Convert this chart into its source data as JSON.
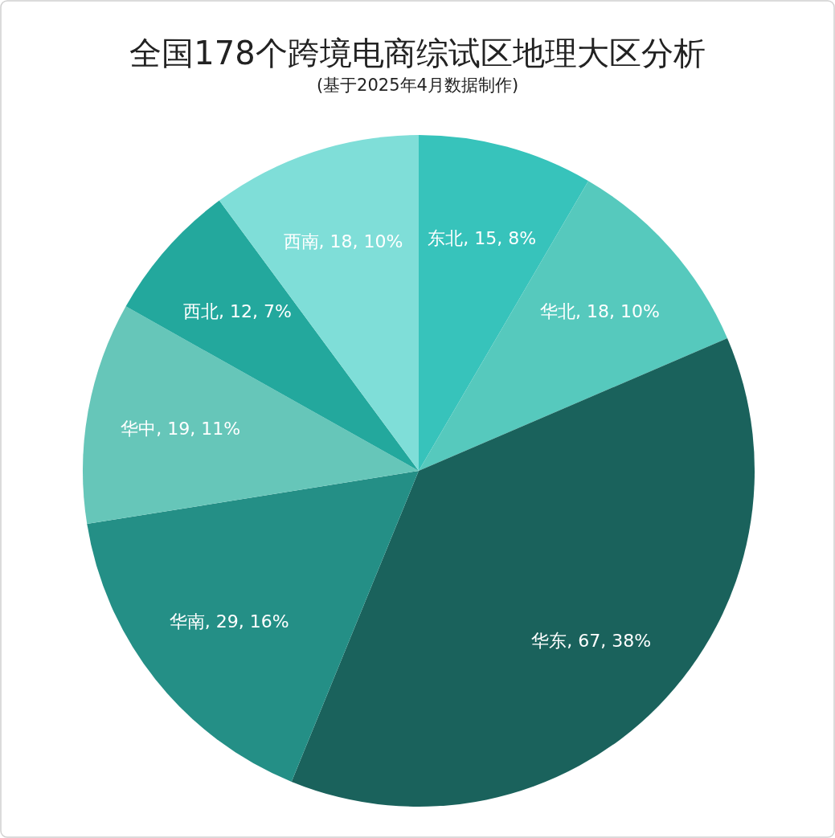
{
  "chart_data": {
    "type": "pie",
    "title": "全国178个跨境电商综试区地理大区分析",
    "subtitle": "(基于2025年4月数据制作)",
    "categories": [
      "东北",
      "华北",
      "华东",
      "华南",
      "华中",
      "西北",
      "西南"
    ],
    "values": [
      15,
      18,
      67,
      29,
      19,
      12,
      18
    ],
    "colors": [
      "#37c3bb",
      "#56c9bd",
      "#1a625c",
      "#248f86",
      "#66c6b9",
      "#23a89d",
      "#7fded8"
    ],
    "value_labels": [
      ", 15, 8%",
      ", 18, 10%",
      ", 67, 38%",
      ", 29, 16%",
      ", 19, 11%",
      ", 12, 7%",
      ", 18, 10%"
    ]
  }
}
